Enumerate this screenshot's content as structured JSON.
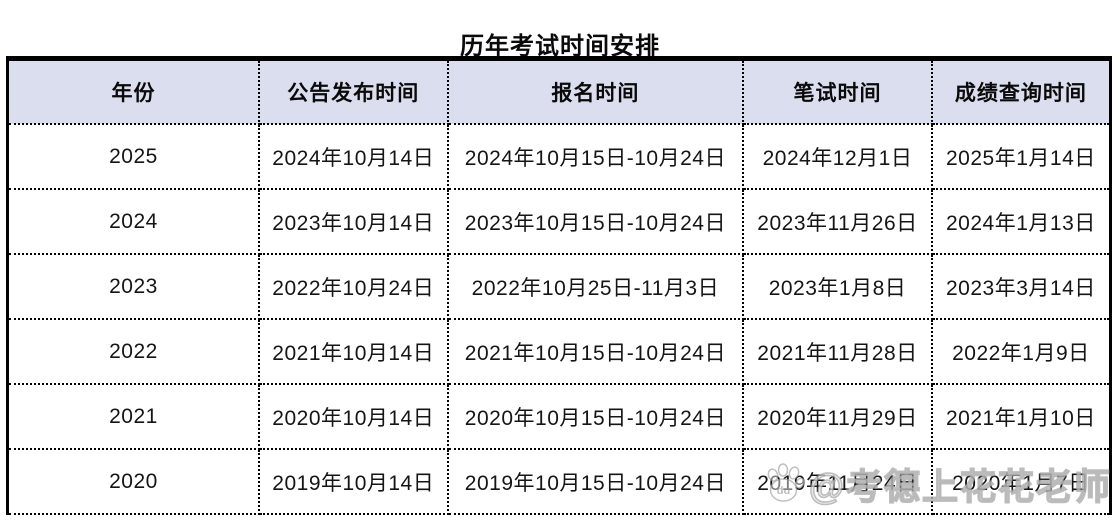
{
  "page": {
    "title": "历年考试时间安排"
  },
  "table": {
    "columns": [
      "年份",
      "公告发布时间",
      "报名时间",
      "笔试时间",
      "成绩查询时间"
    ],
    "rows": [
      [
        "2025",
        "2024年10月14日",
        "2024年10月15日-10月24日",
        "2024年12月1日",
        "2025年1月14日"
      ],
      [
        "2024",
        "2023年10月14日",
        "2023年10月15日-10月24日",
        "2023年11月26日",
        "2024年1月13日"
      ],
      [
        "2023",
        "2022年10月24日",
        "2022年10月25日-11月3日",
        "2023年1月8日",
        "2023年3月14日"
      ],
      [
        "2022",
        "2021年10月14日",
        "2021年10月15日-10月24日",
        "2021年11月28日",
        "2022年1月9日"
      ],
      [
        "2021",
        "2020年10月14日",
        "2020年10月15日-10月24日",
        "2020年11月29日",
        "2021年1月10日"
      ],
      [
        "2020",
        "2019年10月14日",
        "2019年10月15日-10月24日",
        "2019年11月24日",
        "2020年1月7日"
      ]
    ]
  },
  "watermark": {
    "icon": "baidu-paw-icon",
    "icon_text": "du",
    "handle": "@考德上花花老师"
  },
  "colors": {
    "background": "#ffffff",
    "header_bg": "#dbdeee",
    "border": "#000000",
    "text": "#151515",
    "watermark": "rgba(255,255,255,0.55)"
  }
}
